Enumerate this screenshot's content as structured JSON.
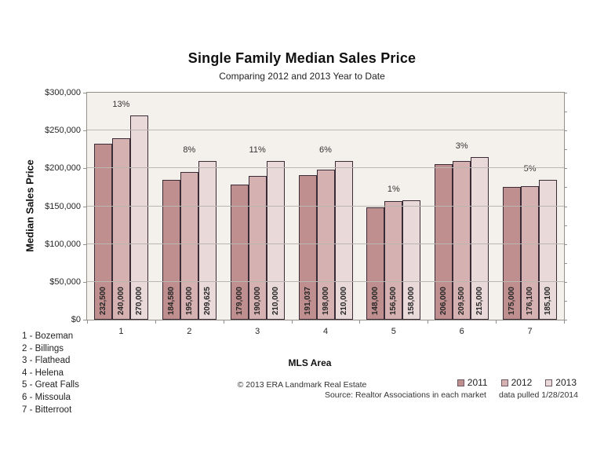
{
  "footer": {
    "copyright": "© 2013 ERA Landmark Real Estate",
    "source": "Source: Realtor Associations in each market",
    "data_pulled": "data pulled 1/28/2014"
  },
  "colors": {
    "plot_bg": "#f4f1ec",
    "bar_border": "#3a2c36",
    "gridline": "#bab6b0",
    "axis": "#94908a",
    "swatch_border": "#6e5a64"
  },
  "chart_data": {
    "type": "bar",
    "title": "Single Family Median Sales Price",
    "subtitle": "Comparing 2012 and 2013 Year to Date",
    "xlabel": "MLS Area",
    "ylabel": "Median Sales Price",
    "ylim": [
      0,
      300000
    ],
    "y_tick_step": 50000,
    "y_minor_tick_step": 25000,
    "grid": true,
    "legend_position": "bottom-right",
    "y_ticks": [
      {
        "label": "$300,000",
        "value": 300000
      },
      {
        "label": "$250,000",
        "value": 250000
      },
      {
        "label": "$200,000",
        "value": 200000
      },
      {
        "label": "$150,000",
        "value": 150000
      },
      {
        "label": "$100,000",
        "value": 100000
      },
      {
        "label": "$50,000",
        "value": 50000
      },
      {
        "label": "$0",
        "value": 0
      }
    ],
    "categories": [
      "1",
      "2",
      "3",
      "4",
      "5",
      "6",
      "7"
    ],
    "category_key": [
      "1 - Bozeman",
      "2 - Billings",
      "3 - Flathead",
      "4 - Helena",
      "5 - Great Falls",
      "6 - Missoula",
      "7 - Bitterroot"
    ],
    "series": [
      {
        "name": "2011",
        "color": "#bf8e8e",
        "values": [
          232500,
          184580,
          179000,
          191037,
          148000,
          206000,
          175000
        ],
        "labels": [
          "232,500",
          "184,580",
          "179,000",
          "191,037",
          "148,000",
          "206,000",
          "175,000"
        ]
      },
      {
        "name": "2012",
        "color": "#d6b1b1",
        "values": [
          240000,
          195000,
          190000,
          198000,
          156500,
          209500,
          176100
        ],
        "labels": [
          "240,000",
          "195,000",
          "190,000",
          "198,000",
          "156,500",
          "209,500",
          "176,100"
        ]
      },
      {
        "name": "2013",
        "color": "#e9d9d9",
        "values": [
          270000,
          209625,
          210000,
          210000,
          158000,
          215000,
          185100
        ],
        "labels": [
          "270,000",
          "209,625",
          "210,000",
          "210,000",
          "158,000",
          "215,000",
          "185,100"
        ]
      }
    ],
    "pct_change_2013_vs_2012": [
      "13%",
      "8%",
      "11%",
      "6%",
      "1%",
      "3%",
      "5%"
    ]
  }
}
